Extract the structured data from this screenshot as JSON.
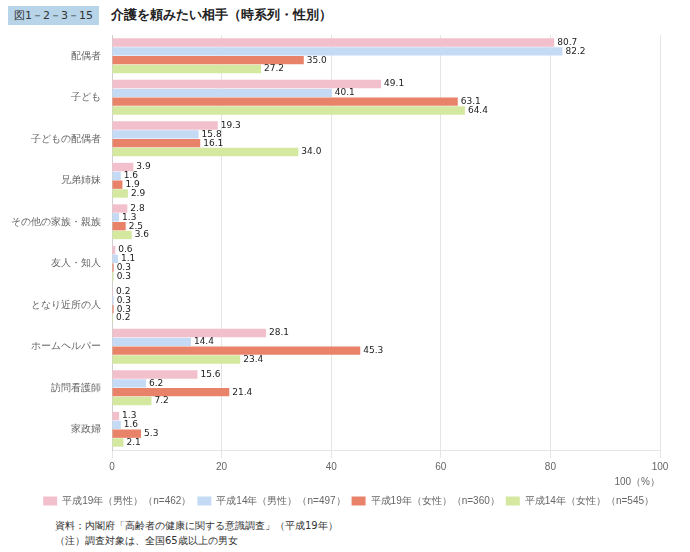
{
  "chart_data": {
    "type": "bar",
    "orientation": "horizontal",
    "title": "介護を頼みたい相手（時系列・性別）",
    "annotations": [
      "図1－2－3－15",
      "資料：内閣府「高齢者の健康に関する意識調査」（平成19年）",
      "（注）調査対象は、全国65歳以上の男女"
    ],
    "xlabel": "100（%）",
    "categories": [
      "配偶者",
      "子ども",
      "子どもの配偶者",
      "兄弟姉妹",
      "その他の家族・親族",
      "友人・知人",
      "となり近所の人",
      "ホームヘルパー",
      "訪問看護師",
      "家政婦"
    ],
    "series": [
      {
        "name": "平成19年（男性）（n=462）",
        "color": "#f2c0cc",
        "values": [
          80.7,
          49.1,
          19.3,
          3.9,
          2.8,
          0.6,
          0.2,
          28.1,
          15.6,
          1.3
        ],
        "value_labels": [
          "80.7",
          "49.1",
          "19.3",
          "3.9",
          "2.8",
          "0.6",
          "0.2",
          "28.1",
          "15.6",
          "1.3"
        ]
      },
      {
        "name": "平成14年（男性）（n=497）",
        "color": "#c5daf5",
        "values": [
          82.2,
          40.1,
          15.8,
          1.6,
          1.3,
          1.1,
          0.3,
          14.4,
          6.2,
          1.6
        ],
        "value_labels": [
          "82.2",
          "40.1",
          "15.8",
          "1.6",
          "1.3",
          "1.1",
          "0.3",
          "14.4",
          "6.2",
          "1.6"
        ]
      },
      {
        "name": "平成19年（女性）（n=360）",
        "color": "#e8836a",
        "values": [
          35.0,
          63.1,
          16.1,
          1.9,
          2.5,
          0.3,
          0.3,
          45.3,
          21.4,
          5.3
        ],
        "value_labels": [
          "35.0",
          "63.1",
          "16.1",
          "1.9",
          "2.5",
          "0.3",
          "0.3",
          "45.3",
          "21.4",
          "5.3"
        ]
      },
      {
        "name": "平成14年（女性）（n=545）",
        "color": "#d4e8a0",
        "values": [
          27.2,
          64.4,
          34.0,
          2.9,
          3.6,
          0.3,
          0.2,
          23.4,
          7.2,
          2.1
        ],
        "value_labels": [
          "27.2",
          "64.4",
          "34.0",
          "2.9",
          "3.6",
          "0.3",
          "0.2",
          "23.4",
          "7.2",
          "2.1"
        ]
      }
    ],
    "xlim": [
      0,
      100
    ],
    "xticks": [
      0,
      20,
      40,
      60,
      80,
      100
    ],
    "grid": true,
    "legend": "lower right",
    "data_labels": true
  }
}
